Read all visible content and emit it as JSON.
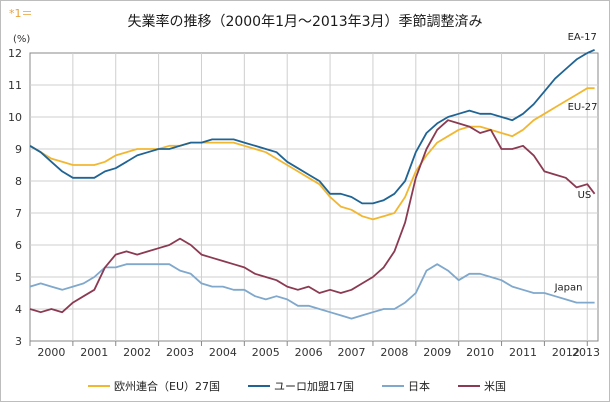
{
  "note": "*1＝",
  "chart_data": {
    "type": "line",
    "title": "失業率の推移（2000年1月～2013年3月）季節調整済み",
    "ylabel": "(%)",
    "xlabel": "",
    "ylim": [
      3,
      12
    ],
    "xlim": [
      2000.0,
      2013.25
    ],
    "yticks": [
      3,
      4,
      5,
      6,
      7,
      8,
      9,
      10,
      11,
      12
    ],
    "xticks": [
      "2000",
      "2001",
      "2002",
      "2003",
      "2004",
      "2005",
      "2006",
      "2007",
      "2008",
      "2009",
      "2010",
      "2011",
      "2012",
      "2013"
    ],
    "grid": true,
    "legend_position": "bottom",
    "series": [
      {
        "name": "欧州連合（EU）27国",
        "label": "EU-27",
        "color": "#f2b731",
        "points": [
          [
            2000.0,
            9.1
          ],
          [
            2000.25,
            8.9
          ],
          [
            2000.5,
            8.7
          ],
          [
            2000.75,
            8.6
          ],
          [
            2001.0,
            8.5
          ],
          [
            2001.25,
            8.5
          ],
          [
            2001.5,
            8.5
          ],
          [
            2001.75,
            8.6
          ],
          [
            2002.0,
            8.8
          ],
          [
            2002.25,
            8.9
          ],
          [
            2002.5,
            9.0
          ],
          [
            2002.75,
            9.0
          ],
          [
            2003.0,
            9.0
          ],
          [
            2003.25,
            9.1
          ],
          [
            2003.5,
            9.1
          ],
          [
            2003.75,
            9.2
          ],
          [
            2004.0,
            9.2
          ],
          [
            2004.25,
            9.2
          ],
          [
            2004.5,
            9.2
          ],
          [
            2004.75,
            9.2
          ],
          [
            2005.0,
            9.1
          ],
          [
            2005.25,
            9.0
          ],
          [
            2005.5,
            8.9
          ],
          [
            2005.75,
            8.7
          ],
          [
            2006.0,
            8.5
          ],
          [
            2006.25,
            8.3
          ],
          [
            2006.5,
            8.1
          ],
          [
            2006.75,
            7.9
          ],
          [
            2007.0,
            7.5
          ],
          [
            2007.25,
            7.2
          ],
          [
            2007.5,
            7.1
          ],
          [
            2007.75,
            6.9
          ],
          [
            2008.0,
            6.8
          ],
          [
            2008.25,
            6.9
          ],
          [
            2008.5,
            7.0
          ],
          [
            2008.75,
            7.5
          ],
          [
            2009.0,
            8.3
          ],
          [
            2009.25,
            8.8
          ],
          [
            2009.5,
            9.2
          ],
          [
            2009.75,
            9.4
          ],
          [
            2010.0,
            9.6
          ],
          [
            2010.25,
            9.7
          ],
          [
            2010.5,
            9.7
          ],
          [
            2010.75,
            9.6
          ],
          [
            2011.0,
            9.5
          ],
          [
            2011.25,
            9.4
          ],
          [
            2011.5,
            9.6
          ],
          [
            2011.75,
            9.9
          ],
          [
            2012.0,
            10.1
          ],
          [
            2012.25,
            10.3
          ],
          [
            2012.5,
            10.5
          ],
          [
            2012.75,
            10.7
          ],
          [
            2013.0,
            10.9
          ],
          [
            2013.17,
            10.9
          ]
        ]
      },
      {
        "name": "ユーロ加盟17国",
        "label": "EA-17",
        "color": "#1f6494",
        "points": [
          [
            2000.0,
            9.1
          ],
          [
            2000.25,
            8.9
          ],
          [
            2000.5,
            8.6
          ],
          [
            2000.75,
            8.3
          ],
          [
            2001.0,
            8.1
          ],
          [
            2001.25,
            8.1
          ],
          [
            2001.5,
            8.1
          ],
          [
            2001.75,
            8.3
          ],
          [
            2002.0,
            8.4
          ],
          [
            2002.25,
            8.6
          ],
          [
            2002.5,
            8.8
          ],
          [
            2002.75,
            8.9
          ],
          [
            2003.0,
            9.0
          ],
          [
            2003.25,
            9.0
          ],
          [
            2003.5,
            9.1
          ],
          [
            2003.75,
            9.2
          ],
          [
            2004.0,
            9.2
          ],
          [
            2004.25,
            9.3
          ],
          [
            2004.5,
            9.3
          ],
          [
            2004.75,
            9.3
          ],
          [
            2005.0,
            9.2
          ],
          [
            2005.25,
            9.1
          ],
          [
            2005.5,
            9.0
          ],
          [
            2005.75,
            8.9
          ],
          [
            2006.0,
            8.6
          ],
          [
            2006.25,
            8.4
          ],
          [
            2006.5,
            8.2
          ],
          [
            2006.75,
            8.0
          ],
          [
            2007.0,
            7.6
          ],
          [
            2007.25,
            7.6
          ],
          [
            2007.5,
            7.5
          ],
          [
            2007.75,
            7.3
          ],
          [
            2008.0,
            7.3
          ],
          [
            2008.25,
            7.4
          ],
          [
            2008.5,
            7.6
          ],
          [
            2008.75,
            8.0
          ],
          [
            2009.0,
            8.9
          ],
          [
            2009.25,
            9.5
          ],
          [
            2009.5,
            9.8
          ],
          [
            2009.75,
            10.0
          ],
          [
            2010.0,
            10.1
          ],
          [
            2010.25,
            10.2
          ],
          [
            2010.5,
            10.1
          ],
          [
            2010.75,
            10.1
          ],
          [
            2011.0,
            10.0
          ],
          [
            2011.25,
            9.9
          ],
          [
            2011.5,
            10.1
          ],
          [
            2011.75,
            10.4
          ],
          [
            2012.0,
            10.8
          ],
          [
            2012.25,
            11.2
          ],
          [
            2012.5,
            11.5
          ],
          [
            2012.75,
            11.8
          ],
          [
            2013.0,
            12.0
          ],
          [
            2013.17,
            12.1
          ]
        ]
      },
      {
        "name": "日本",
        "label": "Japan",
        "color": "#7fa8cc",
        "points": [
          [
            2000.0,
            4.7
          ],
          [
            2000.25,
            4.8
          ],
          [
            2000.5,
            4.7
          ],
          [
            2000.75,
            4.6
          ],
          [
            2001.0,
            4.7
          ],
          [
            2001.25,
            4.8
          ],
          [
            2001.5,
            5.0
          ],
          [
            2001.75,
            5.3
          ],
          [
            2002.0,
            5.3
          ],
          [
            2002.25,
            5.4
          ],
          [
            2002.5,
            5.4
          ],
          [
            2002.75,
            5.4
          ],
          [
            2003.0,
            5.4
          ],
          [
            2003.25,
            5.4
          ],
          [
            2003.5,
            5.2
          ],
          [
            2003.75,
            5.1
          ],
          [
            2004.0,
            4.8
          ],
          [
            2004.25,
            4.7
          ],
          [
            2004.5,
            4.7
          ],
          [
            2004.75,
            4.6
          ],
          [
            2005.0,
            4.6
          ],
          [
            2005.25,
            4.4
          ],
          [
            2005.5,
            4.3
          ],
          [
            2005.75,
            4.4
          ],
          [
            2006.0,
            4.3
          ],
          [
            2006.25,
            4.1
          ],
          [
            2006.5,
            4.1
          ],
          [
            2006.75,
            4.0
          ],
          [
            2007.0,
            3.9
          ],
          [
            2007.25,
            3.8
          ],
          [
            2007.5,
            3.7
          ],
          [
            2007.75,
            3.8
          ],
          [
            2008.0,
            3.9
          ],
          [
            2008.25,
            4.0
          ],
          [
            2008.5,
            4.0
          ],
          [
            2008.75,
            4.2
          ],
          [
            2009.0,
            4.5
          ],
          [
            2009.25,
            5.2
          ],
          [
            2009.5,
            5.4
          ],
          [
            2009.75,
            5.2
          ],
          [
            2010.0,
            4.9
          ],
          [
            2010.25,
            5.1
          ],
          [
            2010.5,
            5.1
          ],
          [
            2010.75,
            5.0
          ],
          [
            2011.0,
            4.9
          ],
          [
            2011.25,
            4.7
          ],
          [
            2011.5,
            4.6
          ],
          [
            2011.75,
            4.5
          ],
          [
            2012.0,
            4.5
          ],
          [
            2012.25,
            4.4
          ],
          [
            2012.5,
            4.3
          ],
          [
            2012.75,
            4.2
          ],
          [
            2013.0,
            4.2
          ],
          [
            2013.17,
            4.2
          ]
        ]
      },
      {
        "name": "米国",
        "label": "US",
        "color": "#8b3a52",
        "points": [
          [
            2000.0,
            4.0
          ],
          [
            2000.25,
            3.9
          ],
          [
            2000.5,
            4.0
          ],
          [
            2000.75,
            3.9
          ],
          [
            2001.0,
            4.2
          ],
          [
            2001.25,
            4.4
          ],
          [
            2001.5,
            4.6
          ],
          [
            2001.75,
            5.3
          ],
          [
            2002.0,
            5.7
          ],
          [
            2002.25,
            5.8
          ],
          [
            2002.5,
            5.7
          ],
          [
            2002.75,
            5.8
          ],
          [
            2003.0,
            5.9
          ],
          [
            2003.25,
            6.0
          ],
          [
            2003.5,
            6.2
          ],
          [
            2003.75,
            6.0
          ],
          [
            2004.0,
            5.7
          ],
          [
            2004.25,
            5.6
          ],
          [
            2004.5,
            5.5
          ],
          [
            2004.75,
            5.4
          ],
          [
            2005.0,
            5.3
          ],
          [
            2005.25,
            5.1
          ],
          [
            2005.5,
            5.0
          ],
          [
            2005.75,
            4.9
          ],
          [
            2006.0,
            4.7
          ],
          [
            2006.25,
            4.6
          ],
          [
            2006.5,
            4.7
          ],
          [
            2006.75,
            4.5
          ],
          [
            2007.0,
            4.6
          ],
          [
            2007.25,
            4.5
          ],
          [
            2007.5,
            4.6
          ],
          [
            2007.75,
            4.8
          ],
          [
            2008.0,
            5.0
          ],
          [
            2008.25,
            5.3
          ],
          [
            2008.5,
            5.8
          ],
          [
            2008.75,
            6.7
          ],
          [
            2009.0,
            8.1
          ],
          [
            2009.25,
            9.0
          ],
          [
            2009.5,
            9.6
          ],
          [
            2009.75,
            9.9
          ],
          [
            2010.0,
            9.8
          ],
          [
            2010.25,
            9.7
          ],
          [
            2010.5,
            9.5
          ],
          [
            2010.75,
            9.6
          ],
          [
            2011.0,
            9.0
          ],
          [
            2011.25,
            9.0
          ],
          [
            2011.5,
            9.1
          ],
          [
            2011.75,
            8.8
          ],
          [
            2012.0,
            8.3
          ],
          [
            2012.25,
            8.2
          ],
          [
            2012.5,
            8.1
          ],
          [
            2012.75,
            7.8
          ],
          [
            2013.0,
            7.9
          ],
          [
            2013.17,
            7.6
          ]
        ]
      }
    ]
  }
}
